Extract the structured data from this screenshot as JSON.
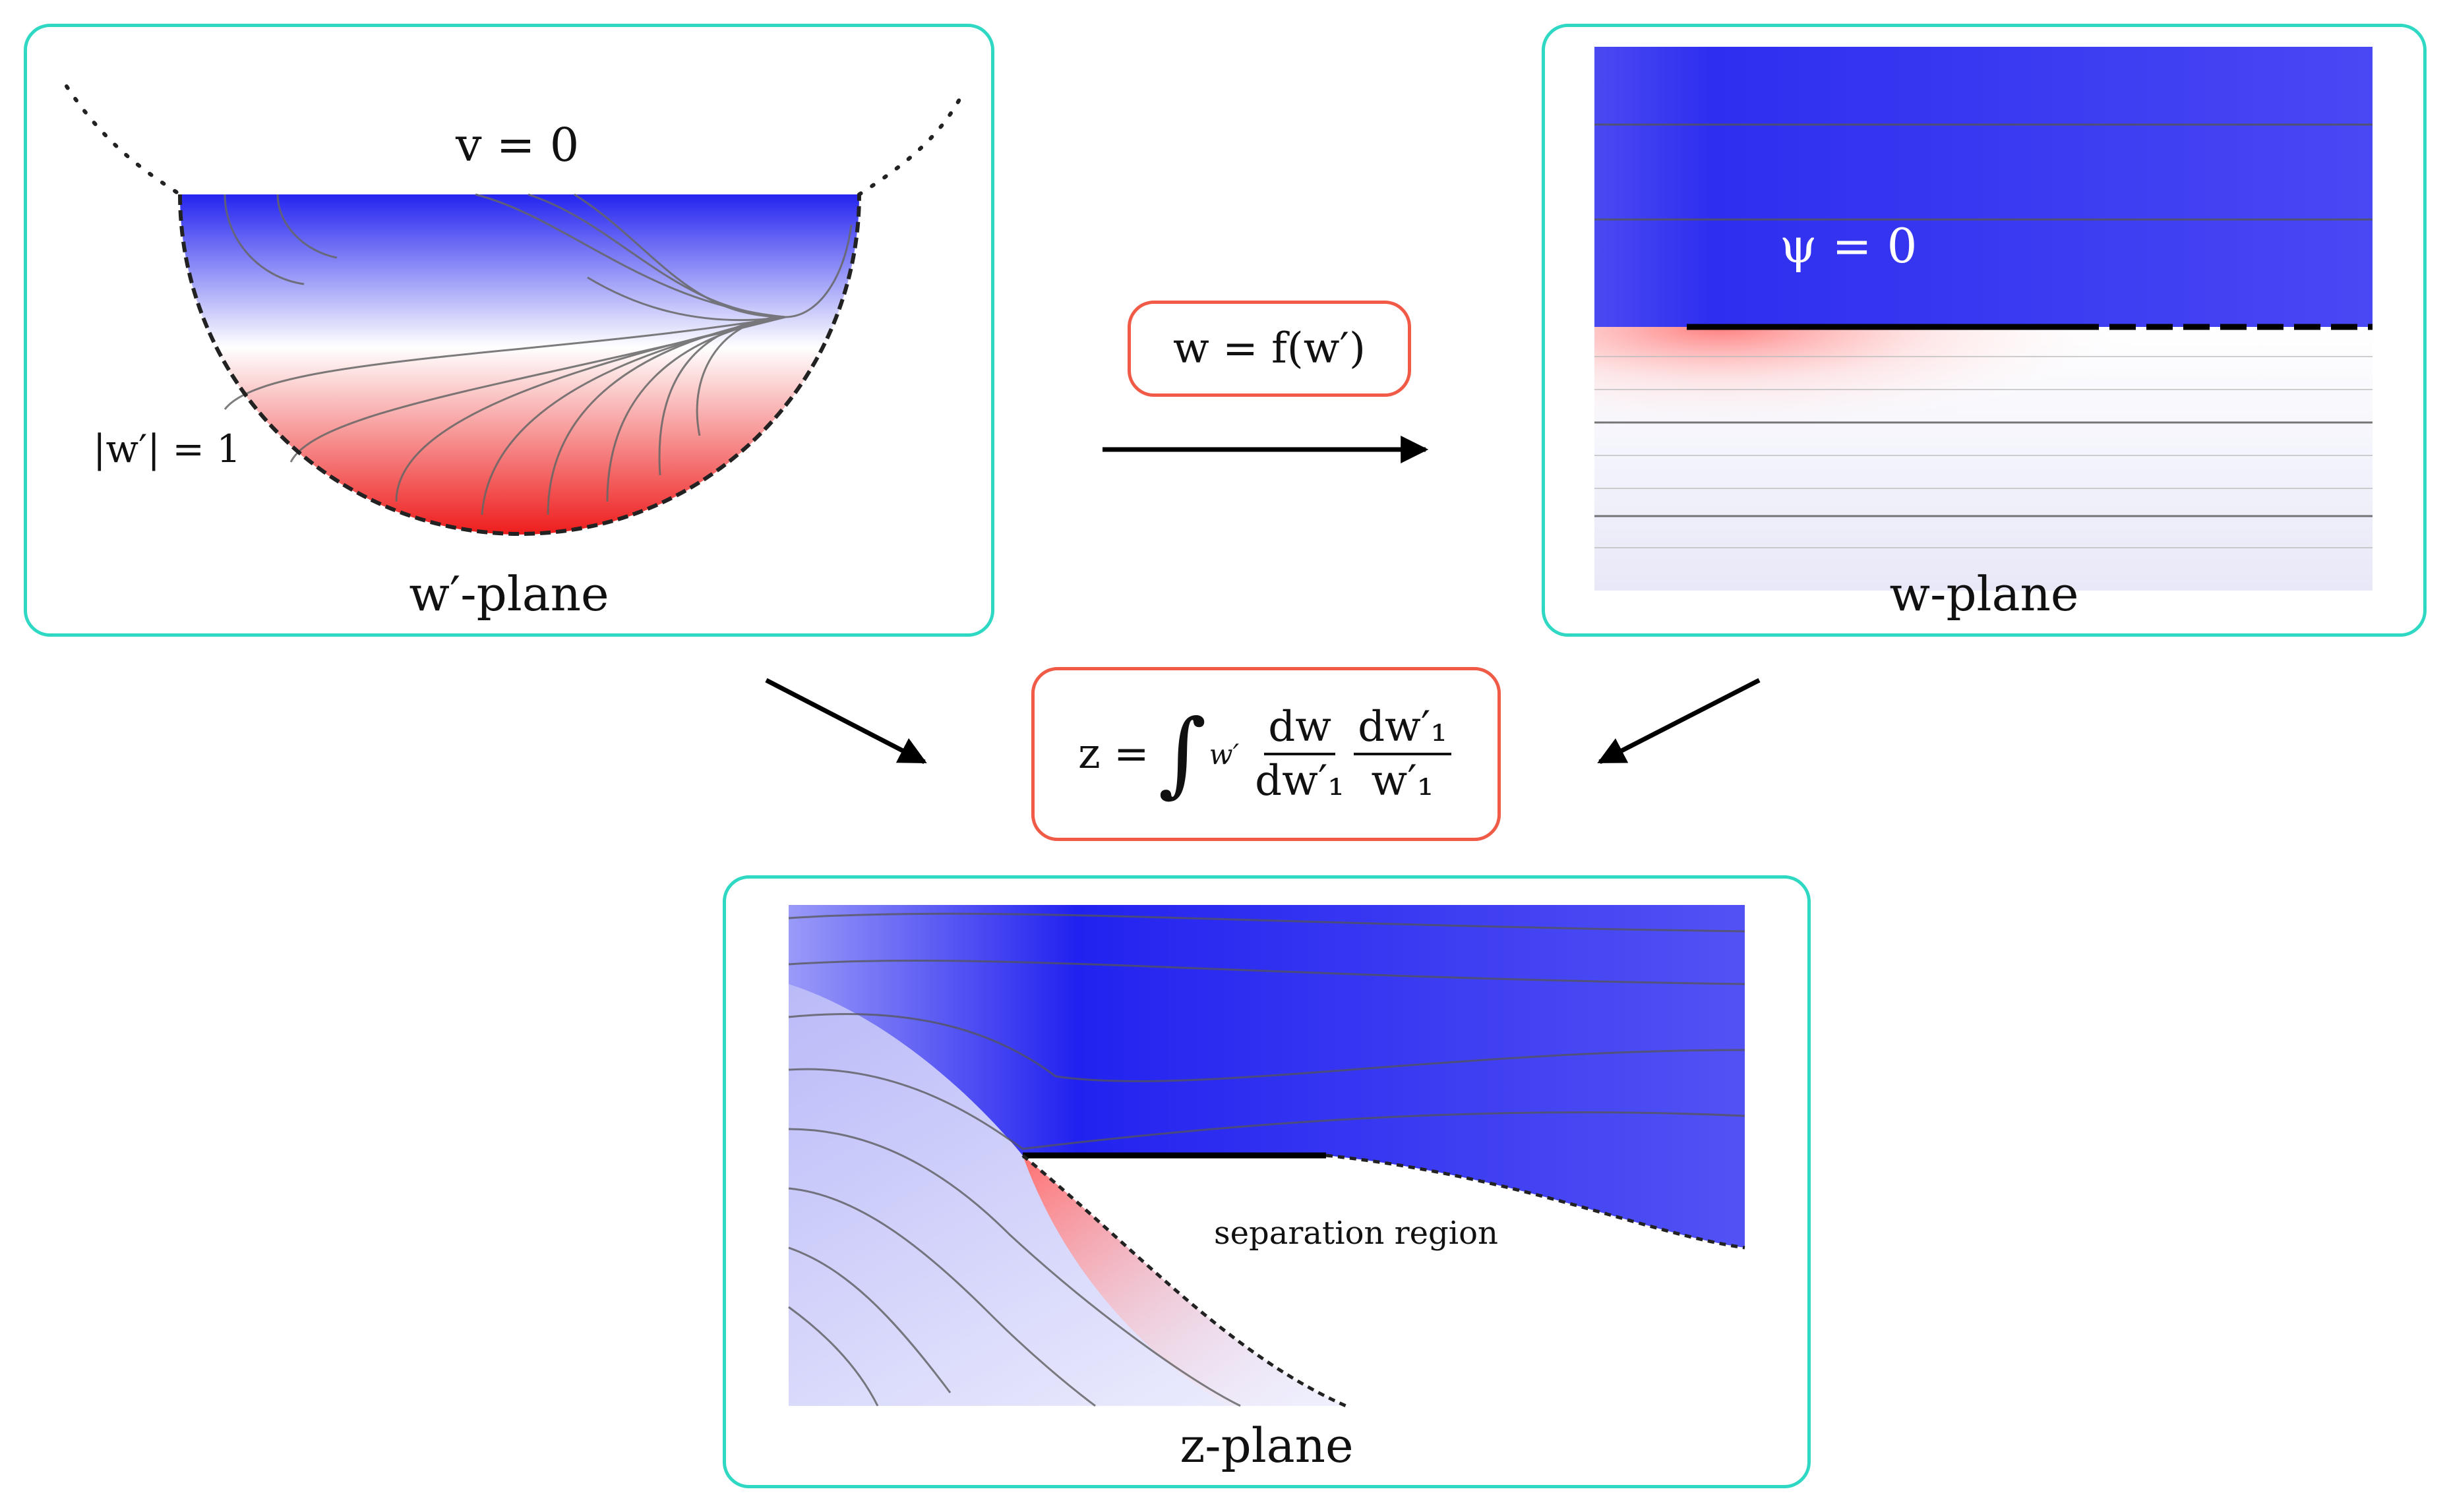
{
  "panels": {
    "wprime": {
      "caption": "w′-plane",
      "label_top": "v = 0",
      "label_circle": "|w′| = 1"
    },
    "w": {
      "caption": "w-plane",
      "label_psi": "ψ = 0"
    },
    "z": {
      "caption": "z-plane",
      "label_region": "separation region"
    }
  },
  "formulas": {
    "map": "w = f(w′)",
    "integral": {
      "lhs": "z =",
      "upper_limit": "w′",
      "frac1_num": "dw",
      "frac1_den": "dw′₁",
      "frac2_num": "dw′₁",
      "frac2_den": "w′₁"
    }
  },
  "colors": {
    "panel_border": "#2fd8c2",
    "formula_border": "#f05a46",
    "field_high": "#2424f0",
    "field_mid": "#ffffff",
    "field_low": "#ee1c1c",
    "streamline": "#666666"
  }
}
